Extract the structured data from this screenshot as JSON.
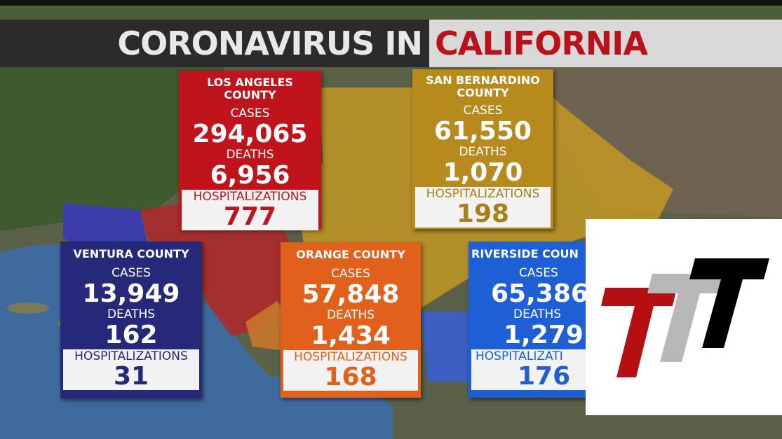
{
  "banner": {
    "left": "CORONAVIRUS IN",
    "right": "CALIFORNIA"
  },
  "labels": {
    "cases": "CASES",
    "deaths": "DEATHS",
    "hospitalizations": "HOSPITALIZATIONS",
    "hospitalizations_cut": "HOSPITALIZATI"
  },
  "counties": {
    "la": {
      "name_1": "LOS ANGELES",
      "name_2": "COUNTY",
      "cases": "294,065",
      "deaths": "6,956",
      "hospitalizations": "777",
      "color": "#c0141c"
    },
    "sb": {
      "name_1": "SAN BERNARDINO",
      "name_2": "COUNTY",
      "cases": "61,550",
      "deaths": "1,070",
      "hospitalizations": "198",
      "color": "#b68a1c"
    },
    "ventura": {
      "name": "VENTURA COUNTY",
      "cases": "13,949",
      "deaths": "162",
      "hospitalizations": "31",
      "color": "#26287a"
    },
    "orange": {
      "name": "ORANGE COUNTY",
      "cases": "57,848",
      "deaths": "1,434",
      "hospitalizations": "168",
      "color": "#e0601c"
    },
    "riverside": {
      "name": "RIVERSIDE COUN",
      "cases": "65,386",
      "deaths": "1,279",
      "hospitalizations": "176",
      "color": "#1f5fd6"
    }
  },
  "logo": {
    "icon": "ttt-logo",
    "colors": [
      "#b50f12",
      "#b8b8b8",
      "#000000"
    ]
  }
}
